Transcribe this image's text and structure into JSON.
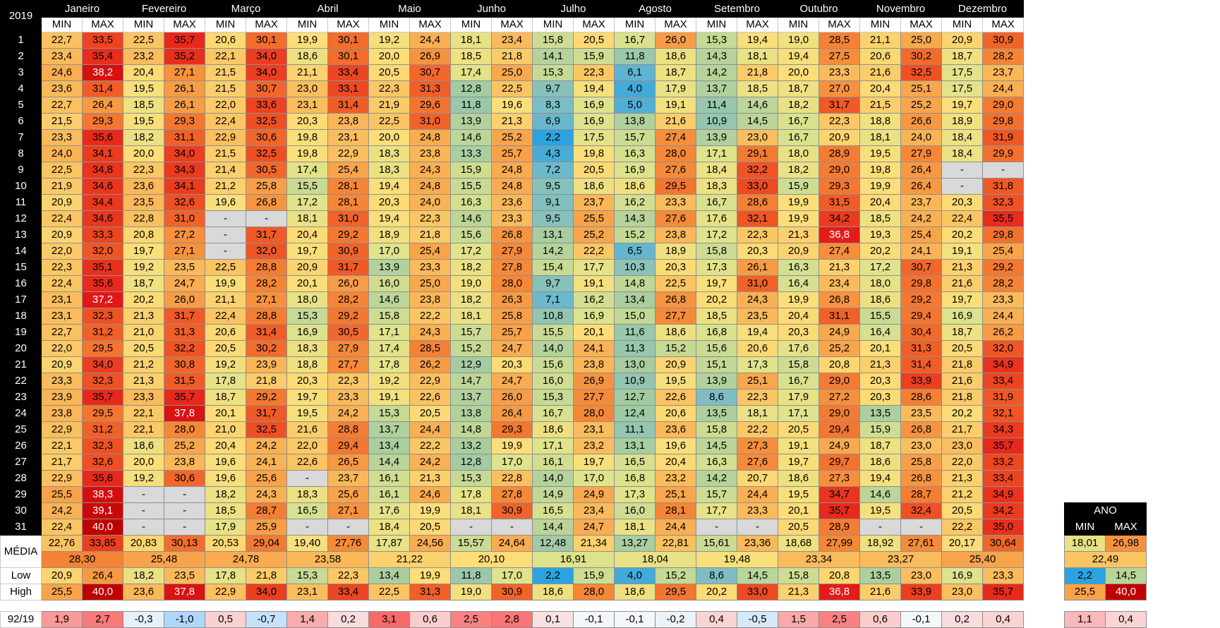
{
  "header": {
    "year": "2019",
    "months": [
      "Janeiro",
      "Fevereiro",
      "Março",
      "Abril",
      "Maio",
      "Junho",
      "Julho",
      "Agosto",
      "Setembro",
      "Outubro",
      "Novembro",
      "Dezembro"
    ],
    "min_label": "MIN",
    "max_label": "MAX",
    "ano_label": "ANO"
  },
  "days": [
    "1",
    "2",
    "3",
    "4",
    "5",
    "6",
    "7",
    "8",
    "9",
    "10",
    "11",
    "12",
    "13",
    "14",
    "15",
    "16",
    "17",
    "18",
    "19",
    "20",
    "21",
    "22",
    "23",
    "24",
    "25",
    "26",
    "27",
    "28",
    "29",
    "30",
    "31"
  ],
  "rows": [
    [
      "22,7",
      "33,5",
      "22,5",
      "35,7",
      "20,6",
      "30,1",
      "19,9",
      "30,1",
      "19,2",
      "24,4",
      "18,1",
      "23,4",
      "15,8",
      "20,5",
      "16,7",
      "26,0",
      "15,3",
      "19,4",
      "19,0",
      "28,5",
      "21,1",
      "25,0",
      "20,9",
      "30,9"
    ],
    [
      "23,4",
      "35,4",
      "23,2",
      "35,2",
      "22,1",
      "34,0",
      "18,6",
      "30,1",
      "20,0",
      "26,9",
      "18,5",
      "21,8",
      "14,1",
      "15,9",
      "11,8",
      "18,6",
      "14,3",
      "18,1",
      "19,4",
      "27,5",
      "20,6",
      "30,2",
      "18,7",
      "28,2"
    ],
    [
      "24,6",
      "38,2",
      "20,4",
      "27,1",
      "21,5",
      "34,0",
      "21,1",
      "33,4",
      "20,5",
      "30,7",
      "17,4",
      "25,0",
      "15,3",
      "22,3",
      "6,1",
      "18,7",
      "14,2",
      "21,8",
      "20,0",
      "23,3",
      "21,6",
      "32,5",
      "17,5",
      "23,7"
    ],
    [
      "23,6",
      "31,4",
      "19,5",
      "26,1",
      "21,5",
      "30,7",
      "23,0",
      "33,1",
      "22,3",
      "31,3",
      "12,8",
      "22,5",
      "9,7",
      "19,4",
      "4,0",
      "17,9",
      "13,7",
      "18,5",
      "18,7",
      "27,0",
      "20,4",
      "25,1",
      "17,5",
      "24,4"
    ],
    [
      "22,7",
      "26,4",
      "18,5",
      "26,1",
      "22,0",
      "33,6",
      "23,1",
      "31,4",
      "21,9",
      "29,6",
      "11,8",
      "19,6",
      "8,3",
      "16,9",
      "5,0",
      "19,1",
      "11,4",
      "14,6",
      "18,2",
      "31,7",
      "21,5",
      "25,2",
      "19,7",
      "29,0"
    ],
    [
      "21,5",
      "29,3",
      "19,5",
      "29,3",
      "22,4",
      "32,5",
      "20,3",
      "23,8",
      "22,5",
      "31,0",
      "13,9",
      "21,3",
      "6,9",
      "16,9",
      "13,8",
      "21,6",
      "10,9",
      "14,5",
      "16,7",
      "22,3",
      "18,8",
      "26,6",
      "18,9",
      "29,8"
    ],
    [
      "23,3",
      "35,6",
      "18,2",
      "31,1",
      "22,9",
      "30,6",
      "19,8",
      "23,1",
      "20,0",
      "24,8",
      "14,6",
      "25,2",
      "2,2",
      "17,5",
      "15,7",
      "27,4",
      "13,9",
      "23,0",
      "16,7",
      "20,9",
      "18,1",
      "24,0",
      "18,4",
      "31,9"
    ],
    [
      "24,0",
      "34,1",
      "20,0",
      "34,0",
      "21,5",
      "32,5",
      "19,8",
      "22,9",
      "18,3",
      "23,8",
      "13,3",
      "25,7",
      "4,3",
      "19,8",
      "16,3",
      "28,0",
      "17,1",
      "29,1",
      "18,0",
      "28,9",
      "19,5",
      "27,9",
      "18,4",
      "29,9"
    ],
    [
      "22,5",
      "34,8",
      "22,3",
      "34,3",
      "21,4",
      "30,5",
      "17,4",
      "25,4",
      "18,3",
      "24,3",
      "15,9",
      "24,8",
      "7,2",
      "20,5",
      "16,9",
      "27,6",
      "18,4",
      "32,2",
      "18,2",
      "29,0",
      "19,8",
      "26,4",
      "-",
      "-"
    ],
    [
      "21,9",
      "34,6",
      "23,6",
      "34,1",
      "21,2",
      "25,8",
      "15,5",
      "28,1",
      "19,4",
      "24,8",
      "15,5",
      "24,8",
      "9,5",
      "18,6",
      "18,6",
      "29,5",
      "18,3",
      "33,0",
      "15,9",
      "29,3",
      "19,9",
      "26,4",
      "-",
      "31,8"
    ],
    [
      "20,9",
      "34,4",
      "23,5",
      "32,6",
      "19,6",
      "26,8",
      "17,2",
      "28,1",
      "20,3",
      "24,0",
      "16,3",
      "23,6",
      "9,1",
      "23,7",
      "16,2",
      "23,3",
      "16,7",
      "28,6",
      "19,9",
      "31,5",
      "20,4",
      "23,7",
      "20,3",
      "32,3"
    ],
    [
      "22,4",
      "34,6",
      "22,8",
      "31,0",
      "-",
      "-",
      "18,1",
      "31,0",
      "19,4",
      "22,3",
      "14,6",
      "23,3",
      "9,5",
      "25,5",
      "14,3",
      "27,6",
      "17,6",
      "32,1",
      "19,9",
      "34,2",
      "18,5",
      "24,2",
      "22,4",
      "35,5"
    ],
    [
      "20,9",
      "33,3",
      "20,8",
      "27,2",
      "-",
      "31,7",
      "20,4",
      "29,2",
      "18,9",
      "21,8",
      "15,6",
      "26,8",
      "13,1",
      "25,2",
      "15,2",
      "23,8",
      "17,2",
      "22,3",
      "21,3",
      "36,8",
      "19,3",
      "25,4",
      "20,2",
      "29,8"
    ],
    [
      "22,0",
      "32,0",
      "19,7",
      "27,1",
      "-",
      "32,0",
      "19,7",
      "30,9",
      "17,0",
      "25,4",
      "17,2",
      "27,9",
      "14,2",
      "22,2",
      "6,5",
      "18,9",
      "15,8",
      "20,3",
      "20,9",
      "27,4",
      "20,2",
      "24,1",
      "19,1",
      "25,4"
    ],
    [
      "22,3",
      "35,1",
      "19,2",
      "23,5",
      "22,5",
      "28,8",
      "20,9",
      "31,7",
      "13,9",
      "23,3",
      "18,2",
      "27,8",
      "15,4",
      "17,7",
      "10,3",
      "20,3",
      "17,3",
      "26,1",
      "16,3",
      "21,3",
      "17,2",
      "30,7",
      "21,3",
      "29,2"
    ],
    [
      "22,4",
      "35,6",
      "18,7",
      "24,7",
      "19,9",
      "28,2",
      "20,1",
      "26,0",
      "16,0",
      "25,0",
      "19,0",
      "28,0",
      "9,7",
      "19,1",
      "14,8",
      "22,5",
      "19,7",
      "31,0",
      "16,4",
      "23,4",
      "18,0",
      "29,8",
      "21,6",
      "28,2"
    ],
    [
      "23,1",
      "37,2",
      "20,2",
      "26,0",
      "21,1",
      "27,1",
      "18,0",
      "28,2",
      "14,6",
      "23,8",
      "18,2",
      "26,3",
      "7,1",
      "16,2",
      "13,4",
      "26,8",
      "20,2",
      "24,3",
      "19,9",
      "26,8",
      "18,6",
      "29,2",
      "19,7",
      "23,3"
    ],
    [
      "23,1",
      "32,3",
      "21,3",
      "31,7",
      "22,4",
      "28,8",
      "15,3",
      "29,2",
      "15,8",
      "22,2",
      "18,1",
      "25,8",
      "10,8",
      "16,9",
      "15,0",
      "27,7",
      "18,5",
      "23,5",
      "20,4",
      "31,1",
      "15,5",
      "29,4",
      "16,9",
      "24,4"
    ],
    [
      "22,7",
      "31,2",
      "21,0",
      "31,3",
      "20,6",
      "31,4",
      "16,9",
      "30,5",
      "17,1",
      "24,3",
      "15,7",
      "25,7",
      "15,5",
      "20,1",
      "11,6",
      "18,6",
      "16,8",
      "19,4",
      "20,3",
      "24,9",
      "16,4",
      "30,4",
      "18,7",
      "26,2"
    ],
    [
      "22,0",
      "29,5",
      "20,5",
      "32,2",
      "20,5",
      "30,2",
      "18,3",
      "27,9",
      "17,4",
      "28,5",
      "15,2",
      "24,7",
      "14,0",
      "24,1",
      "11,3",
      "15,2",
      "15,6",
      "20,6",
      "17,6",
      "25,2",
      "20,1",
      "31,3",
      "20,5",
      "32,0"
    ],
    [
      "20,9",
      "34,0",
      "21,2",
      "30,8",
      "19,2",
      "23,9",
      "18,8",
      "27,7",
      "17,8",
      "26,2",
      "12,9",
      "20,3",
      "15,6",
      "23,8",
      "13,0",
      "20,9",
      "15,1",
      "17,3",
      "15,8",
      "20,8",
      "21,3",
      "31,4",
      "21,8",
      "34,9"
    ],
    [
      "23,3",
      "32,3",
      "21,3",
      "31,5",
      "17,8",
      "21,8",
      "20,3",
      "22,3",
      "19,2",
      "22,9",
      "14,7",
      "24,7",
      "16,0",
      "26,9",
      "10,9",
      "19,5",
      "13,9",
      "25,1",
      "16,7",
      "29,0",
      "20,3",
      "33,9",
      "21,6",
      "33,4"
    ],
    [
      "23,9",
      "35,7",
      "23,3",
      "35,7",
      "18,7",
      "29,2",
      "19,7",
      "23,3",
      "19,1",
      "22,6",
      "13,7",
      "26,0",
      "15,3",
      "27,7",
      "12,7",
      "22,6",
      "8,6",
      "22,3",
      "17,9",
      "27,2",
      "20,3",
      "28,6",
      "21,8",
      "31,9"
    ],
    [
      "23,8",
      "29,5",
      "22,1",
      "37,8",
      "20,1",
      "31,7",
      "19,5",
      "24,2",
      "15,3",
      "20,5",
      "13,8",
      "26,4",
      "16,7",
      "28,0",
      "12,4",
      "20,6",
      "13,5",
      "18,1",
      "17,1",
      "29,0",
      "13,5",
      "23,5",
      "20,2",
      "32,1"
    ],
    [
      "22,9",
      "31,2",
      "22,1",
      "28,0",
      "21,0",
      "32,5",
      "21,6",
      "28,8",
      "13,7",
      "24,4",
      "14,8",
      "29,3",
      "18,6",
      "23,1",
      "11,1",
      "23,6",
      "15,8",
      "22,2",
      "20,5",
      "29,4",
      "15,9",
      "26,8",
      "21,7",
      "34,3"
    ],
    [
      "22,1",
      "32,3",
      "18,6",
      "25,2",
      "20,4",
      "24,2",
      "22,0",
      "29,4",
      "13,4",
      "22,2",
      "13,2",
      "19,9",
      "17,1",
      "23,2",
      "13,1",
      "19,6",
      "14,5",
      "27,3",
      "19,1",
      "24,9",
      "18,7",
      "23,0",
      "23,0",
      "35,7"
    ],
    [
      "21,7",
      "32,6",
      "20,0",
      "23,8",
      "19,6",
      "24,1",
      "22,6",
      "26,5",
      "14,4",
      "24,2",
      "12,8",
      "17,0",
      "16,1",
      "19,7",
      "16,5",
      "20,4",
      "16,3",
      "27,6",
      "19,7",
      "29,7",
      "18,6",
      "25,8",
      "22,0",
      "33,2"
    ],
    [
      "22,9",
      "35,8",
      "19,2",
      "30,6",
      "19,6",
      "25,6",
      "-",
      "23,7",
      "16,1",
      "21,3",
      "15,3",
      "22,8",
      "14,0",
      "17,0",
      "16,8",
      "23,2",
      "14,2",
      "20,7",
      "18,6",
      "27,3",
      "19,4",
      "26,8",
      "21,3",
      "33,4"
    ],
    [
      "25,5",
      "38,3",
      "-",
      "-",
      "18,2",
      "24,3",
      "18,3",
      "25,6",
      "16,1",
      "24,6",
      "17,8",
      "27,8",
      "14,9",
      "24,9",
      "17,3",
      "25,1",
      "15,7",
      "24,4",
      "19,5",
      "34,7",
      "14,6",
      "28,7",
      "21,2",
      "34,9"
    ],
    [
      "24,2",
      "39,1",
      "-",
      "-",
      "18,5",
      "28,7",
      "16,5",
      "27,1",
      "17,6",
      "19,9",
      "18,1",
      "30,9",
      "16,5",
      "23,4",
      "16,0",
      "28,1",
      "17,7",
      "23,3",
      "20,1",
      "35,7",
      "19,5",
      "32,4",
      "20,5",
      "34,2"
    ],
    [
      "22,4",
      "40,0",
      "-",
      "-",
      "17,9",
      "25,9",
      "-",
      "-",
      "18,4",
      "20,5",
      "-",
      "-",
      "14,4",
      "24,7",
      "18,1",
      "24,4",
      "-",
      "-",
      "20,5",
      "28,9",
      "-",
      "-",
      "22,2",
      "35,0"
    ]
  ],
  "media": {
    "label": "MÉDIA",
    "minmax": [
      "22,76",
      "33,85",
      "20,83",
      "30,13",
      "20,53",
      "29,04",
      "19,40",
      "27,76",
      "17,87",
      "24,56",
      "15,57",
      "24,64",
      "12,48",
      "21,34",
      "13,27",
      "22,81",
      "15,61",
      "23,36",
      "18,68",
      "27,99",
      "18,92",
      "27,61",
      "20,17",
      "30,64"
    ],
    "avg": [
      "28,30",
      "25,48",
      "24,78",
      "23,58",
      "21,22",
      "20,10",
      "16,91",
      "18,04",
      "19,48",
      "23,34",
      "23,27",
      "25,40"
    ],
    "ano_minmax": [
      "18,01",
      "26,98"
    ],
    "ano_avg": "22,49"
  },
  "low": {
    "label": "Low",
    "values": [
      "20,9",
      "26,4",
      "18,2",
      "23,5",
      "17,8",
      "21,8",
      "15,3",
      "22,3",
      "13,4",
      "19,9",
      "11,8",
      "17,0",
      "2,2",
      "15,9",
      "4,0",
      "15,2",
      "8,6",
      "14,5",
      "15,8",
      "20,8",
      "13,5",
      "23,0",
      "16,9",
      "23,3"
    ],
    "ano": [
      "2,2",
      "14,5"
    ]
  },
  "high": {
    "label": "High",
    "values": [
      "25,5",
      "40,0",
      "23,6",
      "37,8",
      "22,9",
      "34,0",
      "23,1",
      "33,4",
      "22,5",
      "31,3",
      "19,0",
      "30,9",
      "18,6",
      "28,0",
      "18,6",
      "29,5",
      "20,2",
      "33,0",
      "21,3",
      "36,8",
      "21,6",
      "33,9",
      "23,0",
      "35,7"
    ],
    "ano": [
      "25,5",
      "40,0"
    ]
  },
  "diff": {
    "label": "92/19",
    "values": [
      "1,9",
      "2,7",
      "-0,3",
      "-1,0",
      "0,5",
      "-0,7",
      "1,4",
      "0,2",
      "3,1",
      "0,6",
      "2,5",
      "2,8",
      "0,1",
      "-0,1",
      "-0,1",
      "-0,2",
      "0,4",
      "-0,5",
      "1,5",
      "2,5",
      "0,6",
      "-0,1",
      "0,2",
      "0,4"
    ],
    "ano": [
      "1,1",
      "0,4"
    ]
  }
}
